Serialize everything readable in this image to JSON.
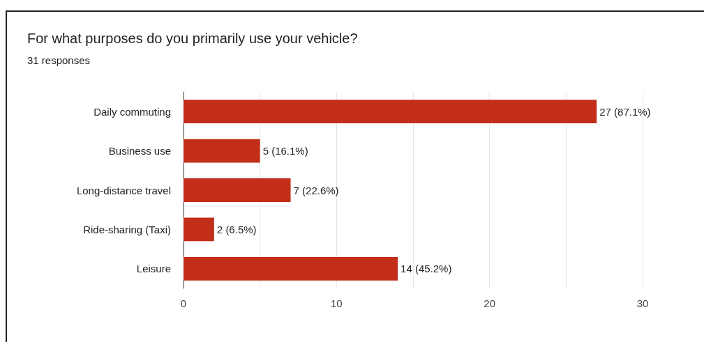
{
  "chart_data": {
    "type": "bar",
    "title": "For what purposes do you primarily use your vehicle?",
    "subtitle": "31 responses",
    "orientation": "horizontal",
    "categories": [
      "Daily commuting",
      "Business use",
      "Long-distance travel",
      "Ride-sharing (Taxi)",
      "Leisure"
    ],
    "values": [
      27,
      5,
      7,
      2,
      14
    ],
    "color": "#c22e19",
    "value_labels": [
      "27 (87.1%)",
      "5 (16.1%)",
      "7 (22.6%)",
      "2 (6.5%)",
      "14 (45.2%)"
    ],
    "xlim": [
      0,
      30
    ],
    "xticks": [
      0,
      {
        "value": 5,
        "label": null
      },
      10,
      {
        "value": 15,
        "label": null
      },
      20,
      {
        "value": 25,
        "label": null
      },
      30
    ],
    "grid": "x"
  }
}
